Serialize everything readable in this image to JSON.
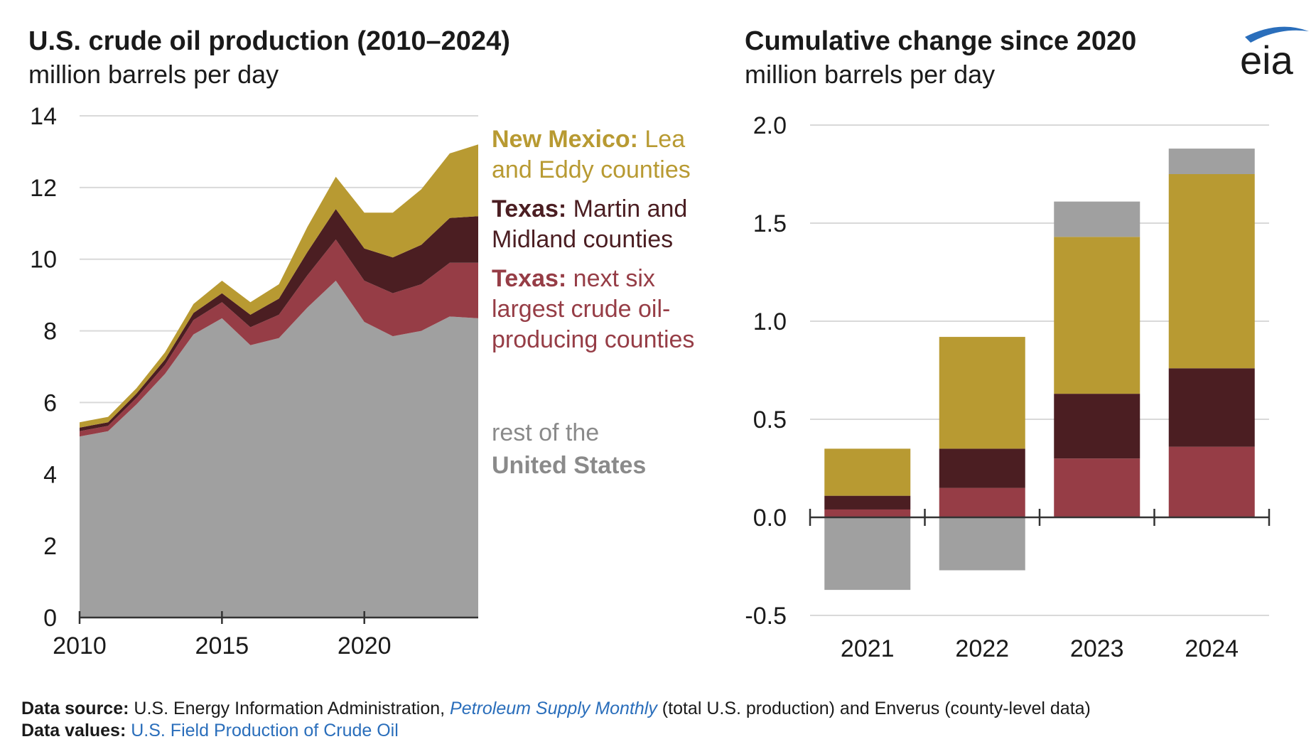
{
  "colors": {
    "rest": "#a0a0a0",
    "next_six": "#963d46",
    "martin_midland": "#4b1e22",
    "lea_eddy": "#b89a32",
    "rest_label": "#8a8a8a",
    "logo_blue": "#2a6ebb",
    "link": "#2a6ebb"
  },
  "logo": {
    "text": "eia"
  },
  "left_chart": {
    "title": "U.S. crude oil production (2010–2024)",
    "subtitle": "million barrels per day",
    "legend": [
      {
        "bold": "New Mexico:",
        "rest_line1": " Lea",
        "line2": "and Eddy counties",
        "color_key": "lea_eddy"
      },
      {
        "bold": "Texas:",
        "rest_line1": " Martin and",
        "line2": "Midland counties",
        "color_key": "martin_midland"
      },
      {
        "bold": "Texas:",
        "rest_line1": " next six",
        "line2": "largest crude oil-",
        "line3": "producing counties",
        "color_key": "next_six"
      },
      {
        "line1": "rest of the",
        "bold_line2": "United States",
        "color_key": "rest_label"
      }
    ]
  },
  "right_chart": {
    "title": "Cumulative change since 2020",
    "subtitle": "million barrels per day"
  },
  "chart_data": [
    {
      "type": "area",
      "stacked": true,
      "title": "U.S. crude oil production (2010–2024)",
      "ylabel": "million barrels per day",
      "x": [
        2010,
        2011,
        2012,
        2013,
        2014,
        2015,
        2016,
        2017,
        2018,
        2019,
        2020,
        2021,
        2022,
        2023,
        2024
      ],
      "xticks": [
        2010,
        2015,
        2020
      ],
      "ylim": [
        0,
        14
      ],
      "yticks": [
        0,
        2,
        4,
        6,
        8,
        10,
        12,
        14
      ],
      "grid": true,
      "series": [
        {
          "name": "rest of the United States",
          "color_key": "rest",
          "values": [
            5.05,
            5.2,
            5.95,
            6.8,
            7.9,
            8.35,
            7.6,
            7.8,
            8.65,
            9.4,
            8.25,
            7.85,
            8.0,
            8.4,
            8.35
          ]
        },
        {
          "name": "Texas: next six largest crude oil-producing counties",
          "color_key": "next_six",
          "values": [
            0.15,
            0.15,
            0.18,
            0.25,
            0.4,
            0.45,
            0.5,
            0.65,
            0.9,
            1.15,
            1.15,
            1.2,
            1.3,
            1.5,
            1.55
          ]
        },
        {
          "name": "Texas: Martin and Midland counties",
          "color_key": "martin_midland",
          "values": [
            0.1,
            0.1,
            0.12,
            0.15,
            0.2,
            0.25,
            0.35,
            0.45,
            0.65,
            0.85,
            0.9,
            1.0,
            1.1,
            1.25,
            1.3
          ]
        },
        {
          "name": "New Mexico: Lea and Eddy counties",
          "color_key": "lea_eddy",
          "values": [
            0.15,
            0.15,
            0.15,
            0.2,
            0.25,
            0.35,
            0.35,
            0.4,
            0.7,
            0.9,
            1.0,
            1.25,
            1.55,
            1.8,
            2.0
          ]
        }
      ]
    },
    {
      "type": "bar",
      "stacked": true,
      "title": "Cumulative change since 2020",
      "ylabel": "million barrels per day",
      "categories": [
        "2021",
        "2022",
        "2023",
        "2024"
      ],
      "ylim": [
        -0.5,
        2.0
      ],
      "yticks": [
        -0.5,
        0.0,
        0.5,
        1.0,
        1.5,
        2.0
      ],
      "ytick_labels": [
        "-0.5",
        "0.0",
        "0.5",
        "1.0",
        "1.5",
        "2.0"
      ],
      "grid": true,
      "series": [
        {
          "name": "Texas: next six largest crude oil-producing counties",
          "color_key": "next_six",
          "values": [
            0.04,
            0.15,
            0.3,
            0.36
          ]
        },
        {
          "name": "Texas: Martin and Midland counties",
          "color_key": "martin_midland",
          "values": [
            0.07,
            0.2,
            0.33,
            0.4
          ]
        },
        {
          "name": "New Mexico: Lea and Eddy counties",
          "color_key": "lea_eddy",
          "values": [
            0.24,
            0.57,
            0.8,
            0.99
          ]
        },
        {
          "name": "rest of the United States",
          "color_key": "rest",
          "values": [
            -0.37,
            -0.27,
            0.18,
            0.13
          ]
        }
      ]
    }
  ],
  "footer": {
    "source_label": "Data source:",
    "source_text1": " U.S. Energy Information Administration, ",
    "source_link": "Petroleum Supply Monthly",
    "source_text2": " (total U.S. production) and Enverus (county-level data)",
    "values_label": "Data values:",
    "values_link": " U.S. Field Production of Crude Oil"
  }
}
